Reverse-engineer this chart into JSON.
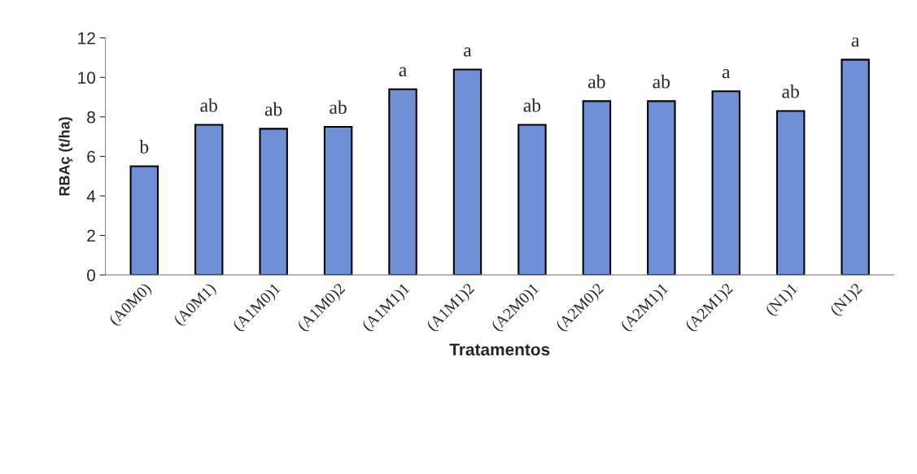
{
  "chart_data": {
    "type": "bar",
    "xlabel": "Tratamentos",
    "ylabel": "RBAç (t/ha)",
    "categories": [
      "(A0M0)",
      "(A0M1)",
      "(A1M0)1",
      "(A1M0)2",
      "(A1M1)1",
      "(A1M1)2",
      "(A2M0)1",
      "(A2M0)2",
      "(A2M1)1",
      "(A2M1)2",
      "(N1)1",
      "(N1)2"
    ],
    "values": [
      5.5,
      7.6,
      7.4,
      7.5,
      9.4,
      10.4,
      7.6,
      8.8,
      8.8,
      9.3,
      8.3,
      10.9
    ],
    "color": "#6f8fd6",
    "ylim": [
      0,
      12
    ],
    "yticks": [
      0,
      2,
      4,
      6,
      8,
      10,
      12
    ],
    "grid": false,
    "annotations": [
      {
        "text": "b",
        "x": "(A0M0)",
        "y": 5.5
      },
      {
        "text": "ab",
        "x": "(A0M1)",
        "y": 7.6
      },
      {
        "text": "ab",
        "x": "(A1M0)1",
        "y": 7.4
      },
      {
        "text": "ab",
        "x": "(A1M0)2",
        "y": 7.5
      },
      {
        "text": "a",
        "x": "(A1M1)1",
        "y": 9.4
      },
      {
        "text": "a",
        "x": "(A1M1)2",
        "y": 10.4
      },
      {
        "text": "ab",
        "x": "(A2M0)1",
        "y": 7.6
      },
      {
        "text": "ab",
        "x": "(A2M0)2",
        "y": 8.8
      },
      {
        "text": "ab",
        "x": "(A2M1)1",
        "y": 8.8
      },
      {
        "text": "a",
        "x": "(A2M1)2",
        "y": 9.3
      },
      {
        "text": "ab",
        "x": "(N1)1",
        "y": 8.3
      },
      {
        "text": "a",
        "x": "(N1)2",
        "y": 10.9
      }
    ]
  }
}
